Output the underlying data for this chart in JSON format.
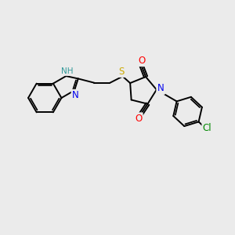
{
  "bg_color": "#ebebeb",
  "bond_color": "#000000",
  "bond_width": 1.4,
  "atom_colors": {
    "N": "#0000ee",
    "O": "#ff0000",
    "S": "#ccaa00",
    "Cl": "#008800",
    "H": "#339999",
    "C": "#000000"
  },
  "font_size_atom": 8.5,
  "figsize": [
    3.0,
    3.0
  ],
  "dpi": 100
}
